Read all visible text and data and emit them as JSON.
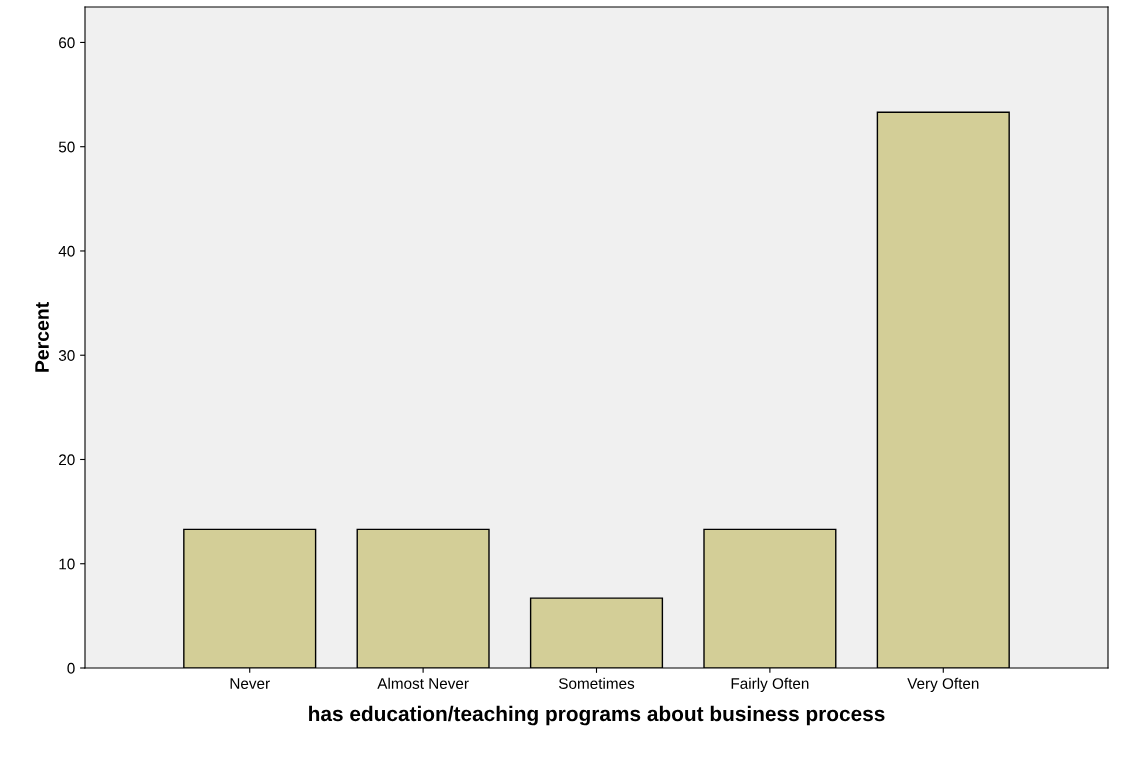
{
  "chart_data": {
    "type": "bar",
    "xlabel": "has education/teaching programs about business process",
    "ylabel": "Percent",
    "categories": [
      "Never",
      "Almost Never",
      "Sometimes",
      "Fairly Often",
      "Very Often"
    ],
    "values": [
      13.3,
      13.3,
      6.7,
      13.3,
      53.3
    ],
    "color": "#d3ce97",
    "ylim": [
      0,
      63.4
    ],
    "yticks": [
      0,
      10,
      20,
      30,
      40,
      50,
      60
    ],
    "grid": false
  }
}
